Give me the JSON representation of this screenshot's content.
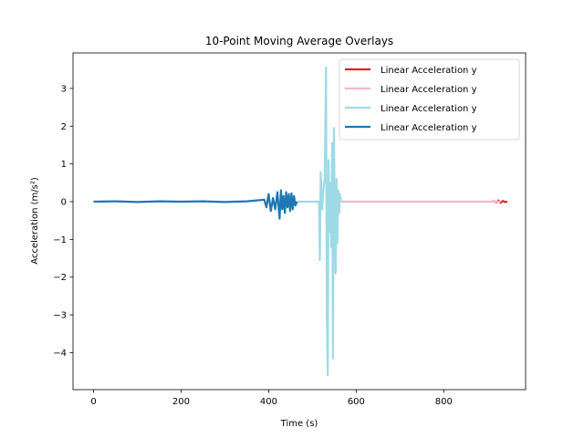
{
  "chart_data": {
    "type": "line",
    "title": "10-Point Moving Average Overlays",
    "xlabel": "Time (s)",
    "ylabel": "Acceleration (m/s²)",
    "xlim": [
      -47,
      987
    ],
    "ylim": [
      -4.98,
      3.94
    ],
    "xticks": [
      0,
      200,
      400,
      600,
      800
    ],
    "yticks": [
      -4,
      -3,
      -2,
      -1,
      0,
      1,
      2,
      3
    ],
    "grid": false,
    "legend_position": "top-right",
    "series": [
      {
        "name": "Linear Acceleration y",
        "color": "#d62728",
        "x": [
          910,
          915,
          920,
          925,
          930,
          935,
          940,
          945
        ],
        "y": [
          0.0,
          0.01,
          -0.02,
          0.03,
          -0.03,
          0.02,
          -0.01,
          0.0
        ]
      },
      {
        "name": "Linear Acceleration y",
        "color": "#f4b6d2",
        "x": [
          565,
          600,
          650,
          700,
          750,
          800,
          850,
          900,
          930
        ],
        "y": [
          0.0,
          0.0,
          0.0,
          0.0,
          0.0,
          0.0,
          0.0,
          0.0,
          0.0
        ]
      },
      {
        "name": "Linear Acceleration y",
        "color": "#9edae5",
        "x": [
          465,
          490,
          515,
          517,
          519,
          522,
          525,
          528,
          531,
          533,
          535,
          537,
          539,
          541,
          543,
          545,
          547,
          549,
          551,
          553,
          555,
          557,
          559,
          561,
          563,
          565
        ],
        "y": [
          0.0,
          0.0,
          0.0,
          -1.55,
          0.78,
          -0.2,
          0.3,
          0.6,
          3.55,
          -3.1,
          -4.6,
          1.1,
          -0.8,
          0.5,
          -1.2,
          1.55,
          -4.15,
          1.95,
          -0.5,
          -1.9,
          0.6,
          -1.1,
          0.3,
          -0.3,
          0.2,
          0.0
        ]
      },
      {
        "name": "Linear Acceleration y",
        "color": "#1f77b4",
        "x": [
          0,
          50,
          100,
          150,
          200,
          250,
          300,
          350,
          390,
          395,
          400,
          405,
          410,
          415,
          420,
          425,
          428,
          431,
          434,
          437,
          440,
          443,
          446,
          449,
          452,
          455,
          458,
          461,
          465
        ],
        "y": [
          0.0,
          0.01,
          -0.01,
          0.01,
          0.0,
          0.01,
          -0.01,
          0.01,
          0.05,
          -0.15,
          0.2,
          -0.25,
          0.1,
          -0.2,
          0.25,
          -0.45,
          0.3,
          -0.2,
          0.15,
          -0.3,
          0.25,
          -0.15,
          0.2,
          -0.25,
          0.22,
          -0.2,
          0.15,
          -0.1,
          0.0
        ]
      }
    ]
  }
}
